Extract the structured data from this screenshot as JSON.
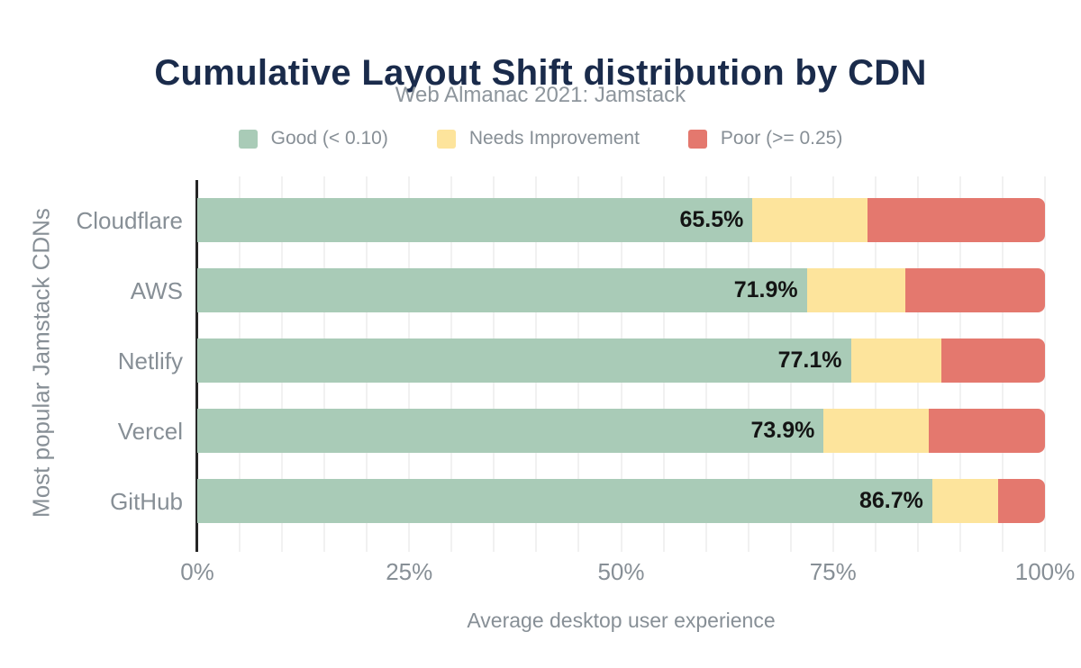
{
  "header": {
    "title": "Cumulative Layout Shift distribution by CDN",
    "subtitle": "Web Almanac 2021: Jamstack"
  },
  "colors": {
    "background": "#ffffff",
    "title": "#1a2b4b",
    "subtitle": "#8d959c",
    "muted": "#878f96",
    "bar_label": "#141414",
    "axis": "#262626",
    "gridline": "#f1f1f1"
  },
  "chart_data": {
    "type": "bar",
    "stacked": true,
    "orientation": "horizontal",
    "title": "Cumulative Layout Shift distribution by CDN",
    "subtitle": "Web Almanac 2021: Jamstack",
    "categories": [
      "Cloudflare",
      "AWS",
      "Netlify",
      "Vercel",
      "GitHub"
    ],
    "series": [
      {
        "name": "Good (< 0.10)",
        "color": "#a9cbb7",
        "values": [
          65.5,
          71.9,
          77.1,
          73.9,
          86.7
        ]
      },
      {
        "name": "Needs Improvement",
        "color": "#fde49c",
        "values": [
          13.6,
          11.6,
          10.7,
          12.4,
          7.8
        ]
      },
      {
        "name": "Poor (>= 0.25)",
        "color": "#e4786e",
        "values": [
          20.9,
          16.5,
          12.2,
          13.7,
          5.5
        ]
      }
    ],
    "bar_labels": [
      "65.5%",
      "71.9%",
      "77.1%",
      "73.9%",
      "86.7%"
    ],
    "xlabel": "Average desktop user experience",
    "ylabel": "Most popular Jamstack CDNs",
    "xlim": [
      0,
      100
    ],
    "x_tick_labels": [
      "0%",
      "25%",
      "50%",
      "75%",
      "100%"
    ],
    "gridline_step_pct": 5,
    "grid": true,
    "legend_position": "top",
    "data_label_note": "only Good segment is labeled; Needs Improvement and Poor values estimated from bar geometry"
  }
}
